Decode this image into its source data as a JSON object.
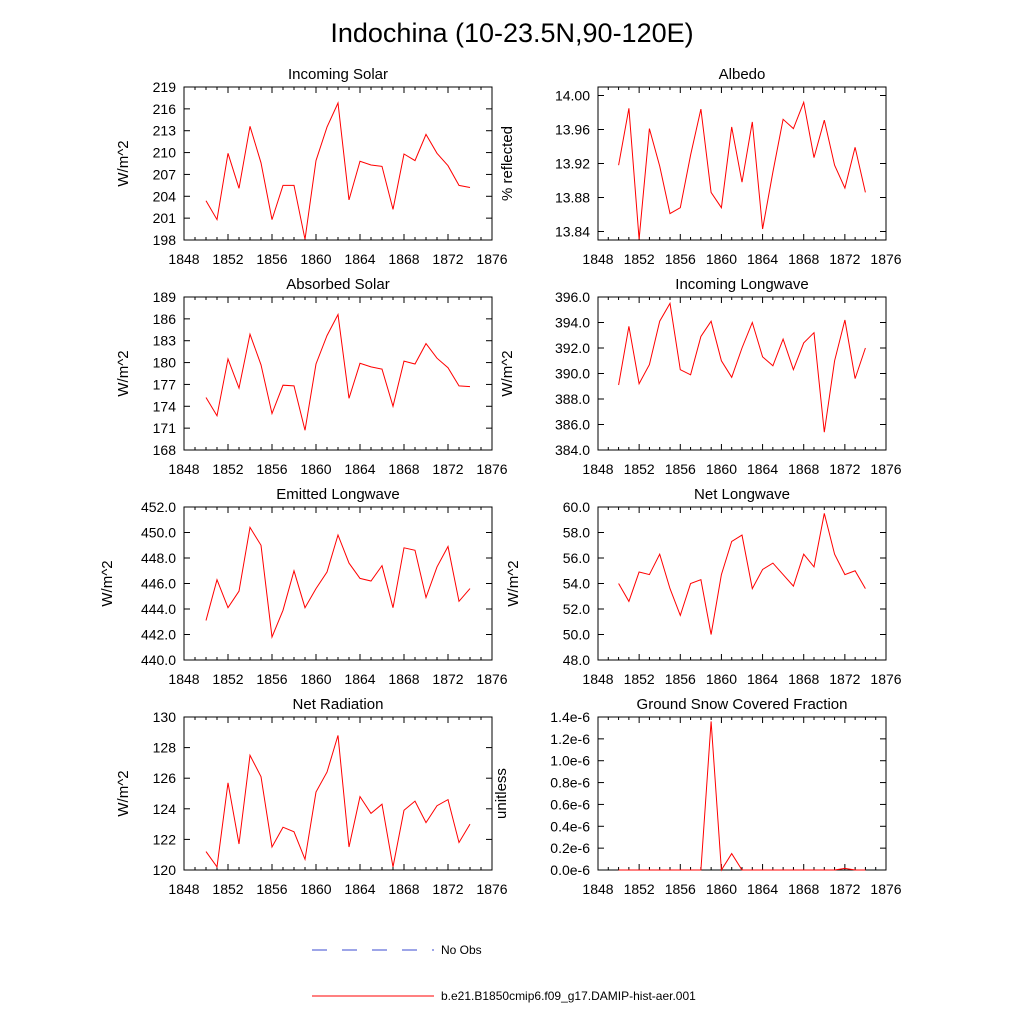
{
  "figure": {
    "title": "Indochina (10-23.5N,90-120E)"
  },
  "colors": {
    "model_line": "#ff0000",
    "obs_line": "#3b4bd0",
    "axis": "#000000"
  },
  "legend": {
    "obs_label": "No Obs",
    "model_label": "b.e21.B1850cmip6.f09_g17.DAMIP-hist-aer.001"
  },
  "chart_data": [
    {
      "type": "line",
      "title": "Incoming Solar",
      "ylabel": "W/m^2",
      "xlim": [
        1848,
        1876
      ],
      "ylim": [
        198,
        219
      ],
      "xticks": [
        "1848",
        "1852",
        "1856",
        "1860",
        "1864",
        "1868",
        "1872",
        "1876"
      ],
      "yticks": [
        "198",
        "201",
        "204",
        "207",
        "210",
        "213",
        "216",
        "219"
      ],
      "x": [
        1850,
        1851,
        1852,
        1853,
        1854,
        1855,
        1856,
        1857,
        1858,
        1859,
        1860,
        1861,
        1862,
        1863,
        1864,
        1865,
        1866,
        1867,
        1868,
        1869,
        1870,
        1871,
        1872,
        1873,
        1874
      ],
      "series": [
        {
          "values": [
            203.4,
            200.8,
            209.9,
            205.1,
            213.6,
            208.6,
            200.8,
            205.5,
            205.5,
            198.1,
            208.9,
            213.5,
            216.8,
            203.5,
            208.8,
            208.3,
            208.1,
            202.2,
            209.8,
            208.9,
            212.5,
            209.9,
            208.2,
            205.5,
            205.2
          ]
        }
      ]
    },
    {
      "type": "line",
      "title": "Albedo",
      "ylabel": "% reflected",
      "xlim": [
        1848,
        1876
      ],
      "ylim": [
        13.83,
        14.01
      ],
      "xticks": [
        "1848",
        "1852",
        "1856",
        "1860",
        "1864",
        "1868",
        "1872",
        "1876"
      ],
      "yticks": [
        "13.84",
        "13.88",
        "13.92",
        "13.96",
        "14.00"
      ],
      "ytick_values": [
        13.84,
        13.88,
        13.92,
        13.96,
        14.0
      ],
      "x": [
        1850,
        1851,
        1852,
        1853,
        1854,
        1855,
        1856,
        1857,
        1858,
        1859,
        1860,
        1861,
        1862,
        1863,
        1864,
        1865,
        1866,
        1867,
        1868,
        1869,
        1870,
        1871,
        1872,
        1873,
        1874
      ],
      "series": [
        {
          "values": [
            13.918,
            13.985,
            13.831,
            13.961,
            13.917,
            13.861,
            13.868,
            13.93,
            13.984,
            13.886,
            13.868,
            13.963,
            13.898,
            13.969,
            13.843,
            13.91,
            13.972,
            13.961,
            13.992,
            13.927,
            13.971,
            13.918,
            13.891,
            13.939,
            13.886
          ]
        }
      ]
    },
    {
      "type": "line",
      "title": "Absorbed Solar",
      "ylabel": "W/m^2",
      "xlim": [
        1848,
        1876
      ],
      "ylim": [
        168,
        189
      ],
      "xticks": [
        "1848",
        "1852",
        "1856",
        "1860",
        "1864",
        "1868",
        "1872",
        "1876"
      ],
      "yticks": [
        "168",
        "171",
        "174",
        "177",
        "180",
        "183",
        "186",
        "189"
      ],
      "x": [
        1850,
        1851,
        1852,
        1853,
        1854,
        1855,
        1856,
        1857,
        1858,
        1859,
        1860,
        1861,
        1862,
        1863,
        1864,
        1865,
        1866,
        1867,
        1868,
        1869,
        1870,
        1871,
        1872,
        1873,
        1874
      ],
      "series": [
        {
          "values": [
            175.2,
            172.7,
            180.5,
            176.5,
            183.9,
            179.7,
            173.0,
            176.9,
            176.8,
            170.7,
            179.8,
            183.7,
            186.6,
            175.1,
            179.9,
            179.4,
            179.1,
            174.0,
            180.2,
            179.8,
            182.6,
            180.6,
            179.3,
            176.8,
            176.7
          ]
        }
      ]
    },
    {
      "type": "line",
      "title": "Incoming Longwave",
      "ylabel": "W/m^2",
      "xlim": [
        1848,
        1876
      ],
      "ylim": [
        384,
        396
      ],
      "xticks": [
        "1848",
        "1852",
        "1856",
        "1860",
        "1864",
        "1868",
        "1872",
        "1876"
      ],
      "yticks": [
        "384.0",
        "386.0",
        "388.0",
        "390.0",
        "392.0",
        "394.0",
        "396.0"
      ],
      "ytick_values": [
        384,
        386,
        388,
        390,
        392,
        394,
        396
      ],
      "x": [
        1850,
        1851,
        1852,
        1853,
        1854,
        1855,
        1856,
        1857,
        1858,
        1859,
        1860,
        1861,
        1862,
        1863,
        1864,
        1865,
        1866,
        1867,
        1868,
        1869,
        1870,
        1871,
        1872,
        1873,
        1874
      ],
      "series": [
        {
          "values": [
            389.1,
            393.7,
            389.2,
            390.7,
            394.1,
            395.5,
            390.3,
            389.9,
            392.9,
            394.1,
            391.0,
            389.7,
            392.0,
            394.0,
            391.3,
            390.6,
            392.7,
            390.3,
            392.4,
            393.2,
            385.4,
            391.0,
            394.2,
            389.6,
            392.0
          ]
        }
      ]
    },
    {
      "type": "line",
      "title": "Emitted Longwave",
      "ylabel": "W/m^2",
      "xlim": [
        1848,
        1876
      ],
      "ylim": [
        440,
        452
      ],
      "xticks": [
        "1848",
        "1852",
        "1856",
        "1860",
        "1864",
        "1868",
        "1872",
        "1876"
      ],
      "yticks": [
        "440.0",
        "442.0",
        "444.0",
        "446.0",
        "448.0",
        "450.0",
        "452.0"
      ],
      "ytick_values": [
        440,
        442,
        444,
        446,
        448,
        450,
        452
      ],
      "x": [
        1850,
        1851,
        1852,
        1853,
        1854,
        1855,
        1856,
        1857,
        1858,
        1859,
        1860,
        1861,
        1862,
        1863,
        1864,
        1865,
        1866,
        1867,
        1868,
        1869,
        1870,
        1871,
        1872,
        1873,
        1874
      ],
      "series": [
        {
          "values": [
            443.1,
            446.3,
            444.1,
            445.4,
            450.4,
            449.0,
            441.8,
            443.9,
            447.0,
            444.1,
            445.6,
            446.9,
            449.8,
            447.6,
            446.4,
            446.2,
            447.4,
            444.1,
            448.8,
            448.6,
            444.9,
            447.3,
            448.9,
            444.6,
            445.6
          ]
        }
      ]
    },
    {
      "type": "line",
      "title": "Net Longwave",
      "ylabel": "W/m^2",
      "xlim": [
        1848,
        1876
      ],
      "ylim": [
        48,
        60
      ],
      "xticks": [
        "1848",
        "1852",
        "1856",
        "1860",
        "1864",
        "1868",
        "1872",
        "1876"
      ],
      "yticks": [
        "48.0",
        "50.0",
        "52.0",
        "54.0",
        "56.0",
        "58.0",
        "60.0"
      ],
      "ytick_values": [
        48,
        50,
        52,
        54,
        56,
        58,
        60
      ],
      "x": [
        1850,
        1851,
        1852,
        1853,
        1854,
        1855,
        1856,
        1857,
        1858,
        1859,
        1860,
        1861,
        1862,
        1863,
        1864,
        1865,
        1866,
        1867,
        1868,
        1869,
        1870,
        1871,
        1872,
        1873,
        1874
      ],
      "series": [
        {
          "values": [
            54.0,
            52.6,
            54.9,
            54.7,
            56.3,
            53.6,
            51.5,
            54.0,
            54.3,
            50.0,
            54.7,
            57.3,
            57.8,
            53.6,
            55.1,
            55.6,
            54.7,
            53.8,
            56.3,
            55.3,
            59.5,
            56.3,
            54.7,
            55.0,
            53.6
          ]
        }
      ]
    },
    {
      "type": "line",
      "title": "Net Radiation",
      "ylabel": "W/m^2",
      "xlim": [
        1848,
        1876
      ],
      "ylim": [
        120,
        130
      ],
      "xticks": [
        "1848",
        "1852",
        "1856",
        "1860",
        "1864",
        "1868",
        "1872",
        "1876"
      ],
      "yticks": [
        "120",
        "122",
        "124",
        "126",
        "128",
        "130"
      ],
      "x": [
        1850,
        1851,
        1852,
        1853,
        1854,
        1855,
        1856,
        1857,
        1858,
        1859,
        1860,
        1861,
        1862,
        1863,
        1864,
        1865,
        1866,
        1867,
        1868,
        1869,
        1870,
        1871,
        1872,
        1873,
        1874
      ],
      "series": [
        {
          "values": [
            121.2,
            120.2,
            125.7,
            121.7,
            127.5,
            126.1,
            121.5,
            122.8,
            122.5,
            120.7,
            125.1,
            126.4,
            128.8,
            121.5,
            124.8,
            123.7,
            124.3,
            120.2,
            123.9,
            124.5,
            123.1,
            124.2,
            124.6,
            121.8,
            123.0
          ]
        }
      ]
    },
    {
      "type": "line",
      "title": "Ground Snow Covered Fraction",
      "ylabel": "unitless",
      "xlim": [
        1848,
        1876
      ],
      "ylim": [
        0,
        1.4e-06
      ],
      "xticks": [
        "1848",
        "1852",
        "1856",
        "1860",
        "1864",
        "1868",
        "1872",
        "1876"
      ],
      "yticks": [
        "0.0e-6",
        "0.2e-6",
        "0.4e-6",
        "0.6e-6",
        "0.8e-6",
        "1.0e-6",
        "1.2e-6",
        "1.4e-6"
      ],
      "ytick_values": [
        0,
        2e-07,
        4e-07,
        6e-07,
        8e-07,
        1e-06,
        1.2e-06,
        1.4e-06
      ],
      "x": [
        1850,
        1851,
        1852,
        1853,
        1854,
        1855,
        1856,
        1857,
        1858,
        1859,
        1860,
        1861,
        1862,
        1863,
        1864,
        1865,
        1866,
        1867,
        1868,
        1869,
        1870,
        1871,
        1872,
        1873,
        1874
      ],
      "series": [
        {
          "values": [
            0,
            0,
            0,
            0,
            0,
            0,
            0,
            0,
            0,
            1.36e-06,
            0,
            1.5e-07,
            0,
            0,
            0,
            0,
            0,
            0,
            0,
            0,
            0,
            0,
            1.5e-08,
            0,
            0
          ]
        }
      ]
    }
  ]
}
